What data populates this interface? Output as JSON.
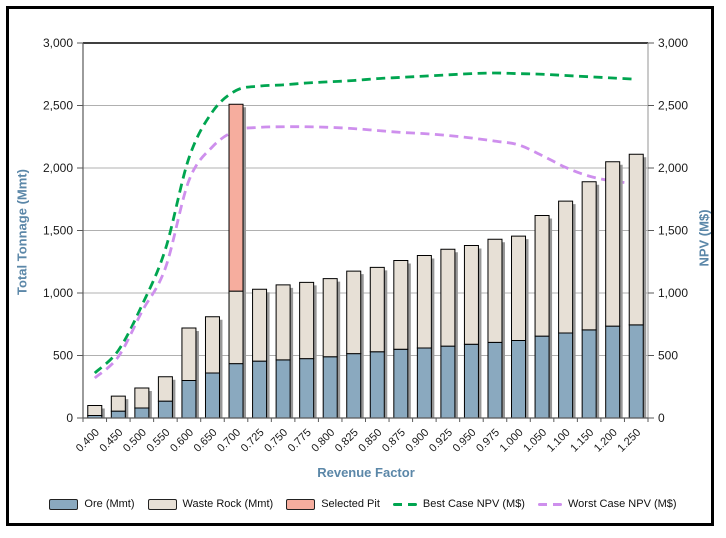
{
  "chart_data": {
    "type": "combo-stacked-bar-line",
    "title": "",
    "categories": [
      "0.400",
      "0.450",
      "0.500",
      "0.550",
      "0.600",
      "0.650",
      "0.700",
      "0.725",
      "0.750",
      "0.775",
      "0.800",
      "0.825",
      "0.850",
      "0.875",
      "0.900",
      "0.925",
      "0.950",
      "0.975",
      "1.000",
      "1.050",
      "1.100",
      "1.150",
      "1.200",
      "1.250"
    ],
    "series": [
      {
        "name": "Ore (Mmt)",
        "type": "bar",
        "stack": "tonnage",
        "color": "#8AA9BF",
        "values": [
          20,
          55,
          80,
          135,
          300,
          360,
          435,
          455,
          465,
          475,
          490,
          515,
          530,
          550,
          560,
          575,
          590,
          605,
          620,
          655,
          680,
          705,
          735,
          745
        ]
      },
      {
        "name": "Waste Rock (Mmt)",
        "type": "bar",
        "stack": "tonnage",
        "color": "#E7E0D6",
        "values": [
          80,
          120,
          160,
          195,
          420,
          450,
          580,
          575,
          600,
          610,
          625,
          660,
          675,
          710,
          740,
          775,
          790,
          825,
          835,
          965,
          1055,
          1185,
          1315,
          1365
        ]
      },
      {
        "name": "Selected Pit",
        "type": "bar",
        "stack": "tonnage",
        "color": "#F6AD9E",
        "values": [
          0,
          0,
          0,
          0,
          0,
          0,
          1495,
          0,
          0,
          0,
          0,
          0,
          0,
          0,
          0,
          0,
          0,
          0,
          0,
          0,
          0,
          0,
          0,
          0
        ]
      },
      {
        "name": "Best Case NPV (M$)",
        "type": "line",
        "dashed": true,
        "color": "#00A550",
        "axis": "right",
        "values": [
          360,
          540,
          900,
          1350,
          2080,
          2450,
          2620,
          2655,
          2665,
          2680,
          2690,
          2700,
          2715,
          2725,
          2735,
          2745,
          2755,
          2760,
          2755,
          2750,
          2740,
          2730,
          2720,
          2710
        ]
      },
      {
        "name": "Worst Case NPV (M$)",
        "type": "line",
        "dashed": true,
        "color": "#CE8FED",
        "axis": "right",
        "values": [
          320,
          490,
          850,
          1200,
          1900,
          2170,
          2300,
          2325,
          2330,
          2330,
          2325,
          2315,
          2300,
          2285,
          2275,
          2260,
          2240,
          2215,
          2185,
          2100,
          2005,
          1935,
          1895,
          1875
        ]
      }
    ],
    "x_axis": {
      "title": "Revenue Factor"
    },
    "left_axis": {
      "title": "Total Tonnage (Mmt)",
      "min": 0,
      "max": 3000,
      "step": 500,
      "tick_labels": [
        "0",
        "500",
        "1,000",
        "1,500",
        "2,000",
        "2,500",
        "3,000"
      ]
    },
    "right_axis": {
      "title": "NPV (M$)",
      "min": 0,
      "max": 3000,
      "step": 500,
      "tick_labels": [
        "0",
        "500",
        "1,000",
        "1,500",
        "2,000",
        "2,500",
        "3,000"
      ]
    },
    "legend_position": "bottom",
    "grid": "horizontal"
  },
  "styles": {
    "axis_title_color": "#5B87A8",
    "tick_label_color": "#1A1A1A",
    "grid_color": "#B0B0B0",
    "top_border_color": "#000000",
    "axis_line_color": "#595959",
    "right_axis_line_color": "#A6A6A6",
    "bar_border_color": "#000000",
    "bar_shadow_color": "#979797",
    "frame_border_color": "#000000",
    "background": "#FFFFFF"
  }
}
